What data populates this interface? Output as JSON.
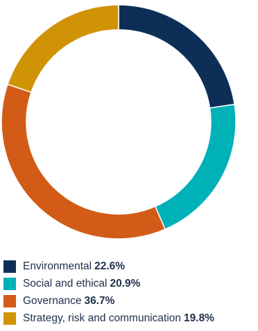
{
  "chart_data": {
    "type": "pie",
    "style": "donut",
    "legend_position": "bottom",
    "categories": [
      "Environmental",
      "Social and ethical",
      "Governance",
      "Strategy, risk and communication"
    ],
    "values": [
      22.6,
      20.9,
      36.7,
      19.8
    ],
    "value_labels": [
      "22.6%",
      "20.9%",
      "36.7%",
      "19.8%"
    ],
    "colors": [
      "#0d2f57",
      "#00b1b8",
      "#d25c17",
      "#d19306"
    ]
  }
}
